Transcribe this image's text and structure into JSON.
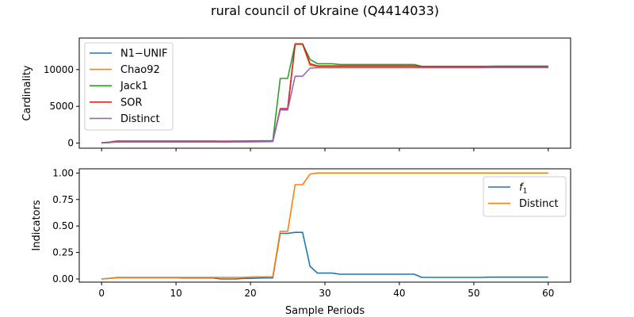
{
  "figure": {
    "title": "rural council of Ukraine (Q4414033)",
    "xlabel": "Sample Periods"
  },
  "chart_data": [
    {
      "type": "line",
      "ylabel": "Cardinality",
      "xlim": [
        -3,
        63
      ],
      "ylim": [
        -700,
        14300
      ],
      "xticks": [
        0,
        10,
        20,
        30,
        40,
        50,
        60
      ],
      "yticks": [
        0,
        5000,
        10000
      ],
      "ytick_labels": [
        "0",
        "5000",
        "10000"
      ],
      "legend_position": "upper-left",
      "grid": false,
      "x": [
        0,
        1,
        2,
        3,
        4,
        5,
        6,
        7,
        8,
        9,
        10,
        11,
        12,
        13,
        14,
        15,
        16,
        17,
        18,
        19,
        20,
        21,
        22,
        23,
        24,
        25,
        26,
        27,
        28,
        29,
        30,
        31,
        32,
        33,
        34,
        35,
        36,
        37,
        38,
        39,
        40,
        41,
        42,
        43,
        44,
        45,
        46,
        47,
        48,
        49,
        50,
        51,
        52,
        53,
        54,
        55,
        56,
        57,
        58,
        59,
        60
      ],
      "series": [
        {
          "name": "N1−UNIF",
          "color": "#1f77b4",
          "values": [
            20,
            60,
            160,
            160,
            160,
            160,
            160,
            160,
            160,
            160,
            160,
            160,
            160,
            160,
            160,
            160,
            160,
            160,
            180,
            180,
            190,
            200,
            210,
            220,
            4600,
            4600,
            13500,
            13500,
            10600,
            10400,
            10400,
            10400,
            10400,
            10400,
            10400,
            10400,
            10400,
            10400,
            10400,
            10400,
            10400,
            10400,
            10400,
            10300,
            10300,
            10300,
            10300,
            10300,
            10300,
            10300,
            10300,
            10300,
            10300,
            10300,
            10300,
            10300,
            10300,
            10300,
            10300,
            10300,
            10300
          ]
        },
        {
          "name": "Chao92",
          "color": "#ff7f0e",
          "values": [
            30,
            80,
            180,
            180,
            180,
            180,
            180,
            180,
            180,
            180,
            180,
            180,
            180,
            180,
            180,
            180,
            170,
            170,
            190,
            190,
            200,
            210,
            220,
            230,
            4650,
            4650,
            13450,
            13450,
            10600,
            10400,
            10400,
            10400,
            10400,
            10400,
            10400,
            10400,
            10400,
            10400,
            10400,
            10400,
            10400,
            10400,
            10400,
            10350,
            10350,
            10350,
            10350,
            10350,
            10350,
            10350,
            10350,
            10350,
            10350,
            10350,
            10350,
            10350,
            10350,
            10350,
            10350,
            10350,
            10350
          ]
        },
        {
          "name": "Jack1",
          "color": "#2ca02c",
          "values": [
            50,
            120,
            280,
            280,
            280,
            280,
            280,
            280,
            280,
            280,
            280,
            280,
            280,
            280,
            280,
            280,
            260,
            260,
            280,
            280,
            290,
            300,
            300,
            300,
            8800,
            8800,
            13500,
            13500,
            11400,
            10800,
            10800,
            10800,
            10700,
            10700,
            10700,
            10700,
            10700,
            10700,
            10700,
            10700,
            10700,
            10700,
            10700,
            10450,
            10450,
            10450,
            10450,
            10450,
            10450,
            10450,
            10450,
            10450,
            10450,
            10480,
            10480,
            10480,
            10480,
            10480,
            10480,
            10480,
            10480
          ]
        },
        {
          "name": "SOR",
          "color": "#d62728",
          "values": [
            40,
            100,
            220,
            220,
            220,
            220,
            220,
            220,
            220,
            220,
            220,
            220,
            220,
            220,
            230,
            230,
            180,
            180,
            200,
            200,
            210,
            220,
            230,
            240,
            4700,
            4700,
            13500,
            13500,
            10800,
            10500,
            10500,
            10500,
            10500,
            10500,
            10500,
            10500,
            10500,
            10500,
            10500,
            10500,
            10500,
            10500,
            10500,
            10400,
            10400,
            10400,
            10400,
            10400,
            10400,
            10400,
            10400,
            10400,
            10400,
            10400,
            10400,
            10400,
            10400,
            10400,
            10400,
            10400,
            10400
          ]
        },
        {
          "name": "Distinct",
          "color": "#9467bd",
          "values": [
            20,
            60,
            140,
            140,
            140,
            140,
            140,
            140,
            140,
            140,
            140,
            140,
            140,
            140,
            140,
            140,
            130,
            130,
            150,
            150,
            160,
            170,
            180,
            200,
            4500,
            4500,
            9100,
            9100,
            10200,
            10250,
            10250,
            10250,
            10250,
            10250,
            10250,
            10250,
            10250,
            10250,
            10250,
            10250,
            10250,
            10250,
            10250,
            10250,
            10250,
            10250,
            10250,
            10250,
            10250,
            10250,
            10250,
            10250,
            10280,
            10280,
            10280,
            10280,
            10280,
            10280,
            10280,
            10280,
            10280
          ]
        }
      ]
    },
    {
      "type": "line",
      "ylabel": "Indicators",
      "xlim": [
        -3,
        63
      ],
      "ylim": [
        -0.03,
        1.04
      ],
      "xticks": [
        0,
        10,
        20,
        30,
        40,
        50,
        60
      ],
      "xtick_labels": [
        "0",
        "10",
        "20",
        "30",
        "40",
        "50",
        "60"
      ],
      "yticks": [
        0,
        0.25,
        0.5,
        0.75,
        1.0
      ],
      "ytick_labels": [
        "0.00",
        "0.25",
        "0.50",
        "0.75",
        "1.00"
      ],
      "legend_position": "upper-right",
      "grid": false,
      "x": [
        0,
        1,
        2,
        3,
        4,
        5,
        6,
        7,
        8,
        9,
        10,
        11,
        12,
        13,
        14,
        15,
        16,
        17,
        18,
        19,
        20,
        21,
        22,
        23,
        24,
        25,
        26,
        27,
        28,
        29,
        30,
        31,
        32,
        33,
        34,
        35,
        36,
        37,
        38,
        39,
        40,
        41,
        42,
        43,
        44,
        45,
        46,
        47,
        48,
        49,
        50,
        51,
        52,
        53,
        54,
        55,
        56,
        57,
        58,
        59,
        60
      ],
      "series": [
        {
          "name": "f1",
          "color": "#1f77b4",
          "values": [
            0.0,
            0.005,
            0.012,
            0.012,
            0.012,
            0.012,
            0.012,
            0.012,
            0.012,
            0.012,
            0.012,
            0.01,
            0.01,
            0.01,
            0.01,
            0.01,
            0.0,
            0.0,
            0.0,
            0.005,
            0.005,
            0.008,
            0.01,
            0.01,
            0.43,
            0.43,
            0.44,
            0.44,
            0.12,
            0.055,
            0.055,
            0.055,
            0.045,
            0.045,
            0.045,
            0.045,
            0.045,
            0.045,
            0.045,
            0.045,
            0.045,
            0.045,
            0.045,
            0.015,
            0.015,
            0.015,
            0.015,
            0.015,
            0.015,
            0.015,
            0.015,
            0.015,
            0.017,
            0.017,
            0.017,
            0.017,
            0.017,
            0.017,
            0.017,
            0.017,
            0.017
          ]
        },
        {
          "name": "Distinct",
          "color": "#ff7f0e",
          "values": [
            0.0,
            0.005,
            0.015,
            0.015,
            0.015,
            0.015,
            0.015,
            0.015,
            0.015,
            0.015,
            0.015,
            0.015,
            0.015,
            0.015,
            0.015,
            0.015,
            0.015,
            0.015,
            0.015,
            0.015,
            0.018,
            0.02,
            0.02,
            0.02,
            0.45,
            0.45,
            0.89,
            0.89,
            0.99,
            1.0,
            1.0,
            1.0,
            1.0,
            1.0,
            1.0,
            1.0,
            1.0,
            1.0,
            1.0,
            1.0,
            1.0,
            1.0,
            1.0,
            1.0,
            1.0,
            1.0,
            1.0,
            1.0,
            1.0,
            1.0,
            1.0,
            1.0,
            1.0,
            1.0,
            1.0,
            1.0,
            1.0,
            1.0,
            1.0,
            1.0,
            1.0
          ]
        }
      ]
    }
  ]
}
